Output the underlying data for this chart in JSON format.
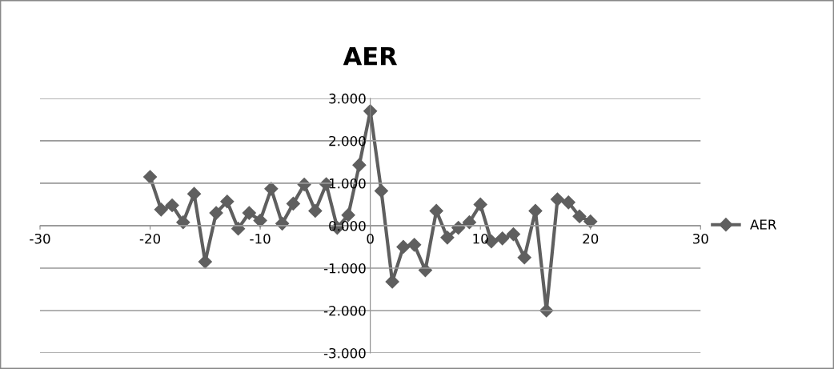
{
  "chart_data": {
    "type": "line",
    "title": "AER",
    "x": [
      -20,
      -19,
      -18,
      -17,
      -16,
      -15,
      -14,
      -13,
      -12,
      -11,
      -10,
      -9,
      -8,
      -7,
      -6,
      -5,
      -4,
      -3,
      -2,
      -1,
      0,
      1,
      2,
      3,
      4,
      5,
      6,
      7,
      8,
      9,
      10,
      11,
      12,
      13,
      14,
      15,
      16,
      17,
      18,
      19,
      20
    ],
    "series": [
      {
        "name": "AER",
        "color": "#5f5f5f",
        "values": [
          1.15,
          0.38,
          0.48,
          0.08,
          0.75,
          -0.85,
          0.3,
          0.57,
          -0.07,
          0.3,
          0.12,
          0.87,
          0.05,
          0.52,
          0.97,
          0.35,
          0.98,
          -0.05,
          0.25,
          1.43,
          2.7,
          0.82,
          -1.32,
          -0.5,
          -0.45,
          -1.05,
          0.35,
          -0.28,
          -0.05,
          0.08,
          0.5,
          -0.37,
          -0.3,
          -0.2,
          -0.75,
          0.35,
          -2.0,
          0.62,
          0.55,
          0.22,
          0.1
        ]
      }
    ],
    "xlim": [
      -30,
      30
    ],
    "xticks": [
      -30,
      -20,
      -10,
      0,
      10,
      20,
      30
    ],
    "ylim": [
      -3,
      3
    ],
    "yticks": [
      {
        "value": -3,
        "label": "-3.000"
      },
      {
        "value": -2,
        "label": "-2.000"
      },
      {
        "value": -1,
        "label": "-1.000"
      },
      {
        "value": 0,
        "label": "0.000"
      },
      {
        "value": 1,
        "label": "1.000"
      },
      {
        "value": 2,
        "label": "2.000"
      },
      {
        "value": 3,
        "label": "3.000"
      }
    ],
    "grid": "y",
    "legend": "right",
    "marker": "diamond",
    "line_style": "solid"
  }
}
